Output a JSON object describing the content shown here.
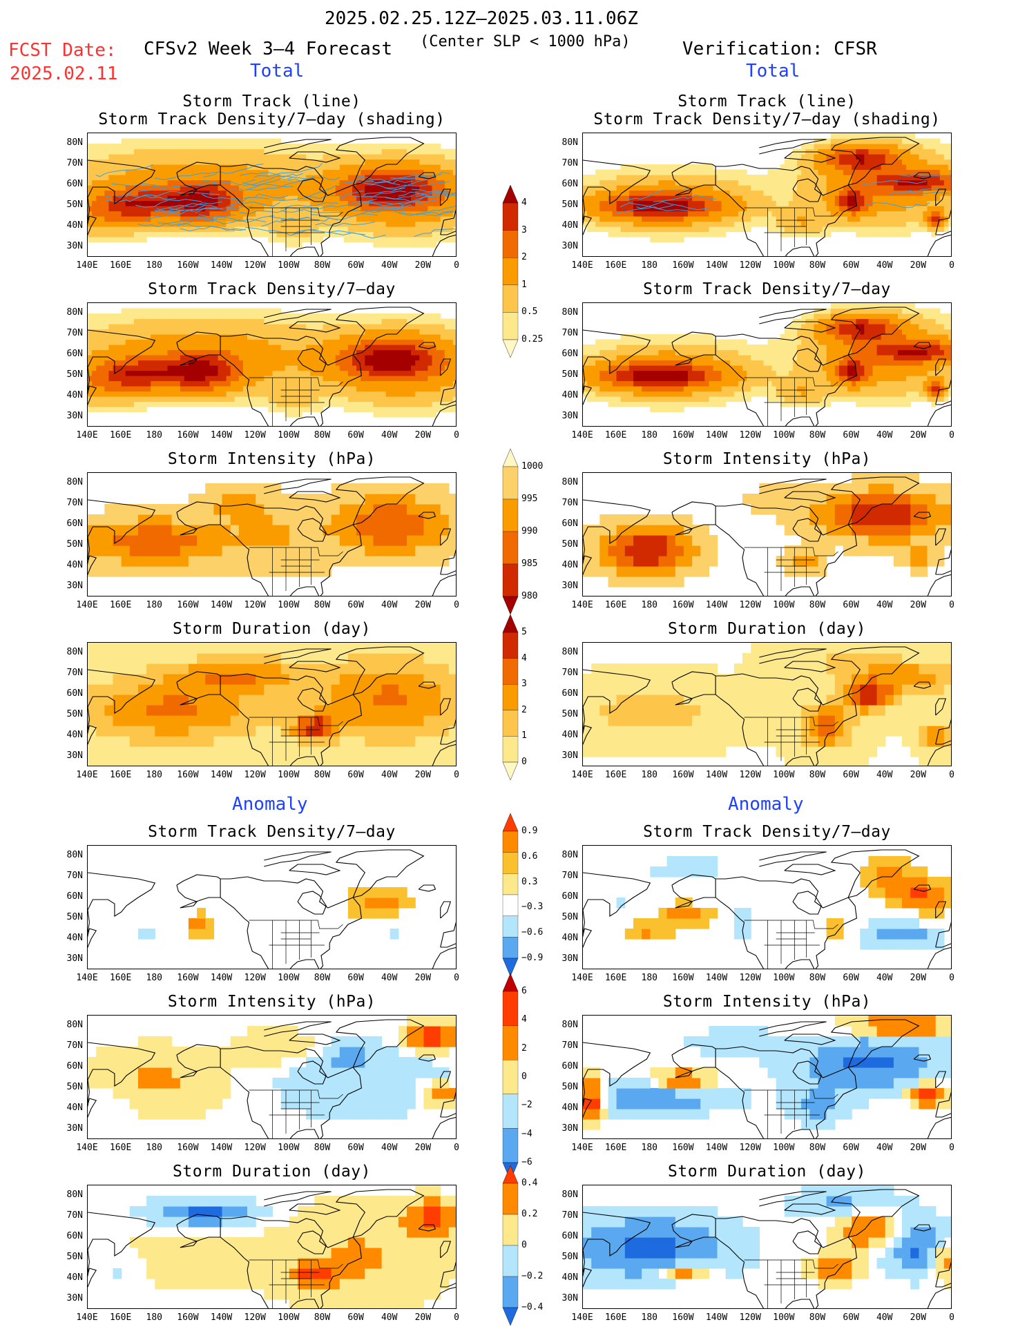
{
  "header": {
    "period": "2025.02.25.12Z–2025.03.11.06Z",
    "fcst_label": "FCST Date:",
    "fcst_date": "2025.02.11",
    "model": "CFSv2 Week 3–4 Forecast",
    "criterion": "(Center SLP < 1000 hPa)",
    "verification": "Verification: CFSR"
  },
  "section_labels": {
    "total_left": "Total",
    "total_right": "Total",
    "anomaly_left": "Anomaly",
    "anomaly_right": "Anomaly"
  },
  "panel_titles": {
    "track_line": "Storm Track (line)",
    "track_density_shading": "Storm Track Density/7–day (shading)",
    "track_density": "Storm Track Density/7–day",
    "intensity": "Storm Intensity (hPa)",
    "duration": "Storm Duration (day)"
  },
  "axes": {
    "lat_ticks": [
      "80N",
      "70N",
      "60N",
      "50N",
      "40N",
      "30N"
    ],
    "lon_ticks": [
      "140E",
      "160E",
      "180",
      "160W",
      "140W",
      "120W",
      "100W",
      "80W",
      "60W",
      "40W",
      "20W",
      "0"
    ]
  },
  "colorbars": {
    "density": {
      "labels": [
        "4",
        "3",
        "2",
        "1",
        "0.5",
        "0.25"
      ],
      "colors": [
        "#a50000",
        "#d22a00",
        "#f06a00",
        "#fa9c00",
        "#fdc64a",
        "#fde88c",
        "#fff7c4"
      ]
    },
    "intensity": {
      "labels": [
        "1000",
        "995",
        "990",
        "985",
        "980"
      ],
      "colors": [
        "#fff7c4",
        "#fdd16a",
        "#fa9c00",
        "#f06a00",
        "#d22a00",
        "#a50000"
      ]
    },
    "duration": {
      "labels": [
        "5",
        "4",
        "3",
        "2",
        "1",
        "0"
      ],
      "colors": [
        "#a50000",
        "#d22a00",
        "#f06a00",
        "#fa9c00",
        "#fdc64a",
        "#fde88c",
        "#fff7c4"
      ]
    },
    "density_anom": {
      "labels": [
        "0.9",
        "0.6",
        "0.3",
        "−0.3",
        "−0.6",
        "−0.9"
      ],
      "colors": [
        "#ff3d00",
        "#ff8a00",
        "#fbc02d",
        "#fde88c",
        "#ffffff",
        "#b3e5fc",
        "#5aa9f0",
        "#1e6be0"
      ]
    },
    "intensity_anom": {
      "labels": [
        "6",
        "4",
        "2",
        "0",
        "−2",
        "−4",
        "−6"
      ],
      "colors": [
        "#c00000",
        "#ff3d00",
        "#ff8a00",
        "#fde88c",
        "#b3e5fc",
        "#5aa9f0",
        "#1e6be0"
      ]
    },
    "duration_anom": {
      "labels": [
        "0.4",
        "0.2",
        "0",
        "−0.2",
        "−0.4"
      ],
      "colors": [
        "#ff3d00",
        "#ff8a00",
        "#fde88c",
        "#b3e5fc",
        "#5aa9f0",
        "#1e6be0"
      ]
    }
  },
  "panels": [
    {
      "key": "total_track_fcst",
      "title_key": "track_line",
      "title2_key": "track_density_shading",
      "tracks": true,
      "pattern": "fcst_density"
    },
    {
      "key": "total_track_obs",
      "title_key": "track_line",
      "title2_key": "track_density_shading",
      "tracks": true,
      "pattern": "obs_density"
    },
    {
      "key": "total_density_fcst",
      "title_key": "track_density",
      "pattern": "fcst_density"
    },
    {
      "key": "total_density_obs",
      "title_key": "track_density",
      "pattern": "obs_density"
    },
    {
      "key": "total_intensity_fcst",
      "title_key": "intensity",
      "pattern": "fcst_intensity"
    },
    {
      "key": "total_intensity_obs",
      "title_key": "intensity",
      "pattern": "obs_intensity"
    },
    {
      "key": "total_duration_fcst",
      "title_key": "duration",
      "pattern": "fcst_duration"
    },
    {
      "key": "total_duration_obs",
      "title_key": "duration",
      "pattern": "obs_duration"
    },
    {
      "key": "anom_density_fcst",
      "title_key": "track_density",
      "pattern": "fcst_anom_density"
    },
    {
      "key": "anom_density_obs",
      "title_key": "track_density",
      "pattern": "obs_anom_density"
    },
    {
      "key": "anom_intensity_fcst",
      "title_key": "intensity",
      "pattern": "fcst_anom_intensity"
    },
    {
      "key": "anom_intensity_obs",
      "title_key": "intensity",
      "pattern": "obs_anom_intensity"
    },
    {
      "key": "anom_duration_fcst",
      "title_key": "duration",
      "pattern": "fcst_anom_duration"
    },
    {
      "key": "anom_duration_obs",
      "title_key": "duration",
      "pattern": "obs_anom_duration"
    }
  ]
}
